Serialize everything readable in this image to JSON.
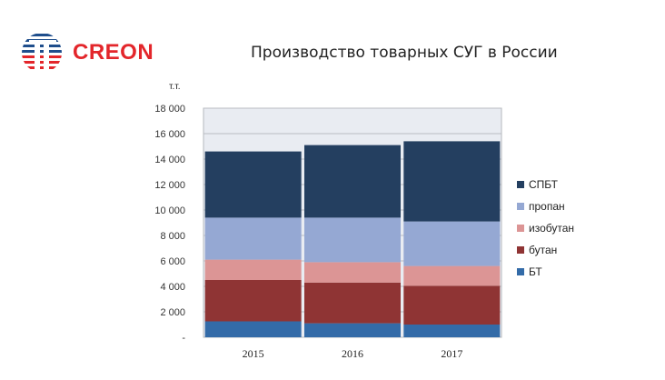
{
  "brand": {
    "name": "CREON"
  },
  "header": {
    "title": "Производство товарных СУГ в России"
  },
  "chart_data": {
    "type": "bar",
    "stacked": true,
    "title": "Производство товарных СУГ в России",
    "unit_label": "т.т.",
    "categories": [
      "2015",
      "2016",
      "2017"
    ],
    "ylim": [
      0,
      18000
    ],
    "ytick_values": [
      0,
      2000,
      4000,
      6000,
      8000,
      10000,
      12000,
      14000,
      16000,
      18000
    ],
    "ytick_labels": [
      "-",
      "2 000",
      "4 000",
      "6 000",
      "8 000",
      "10 000",
      "12 000",
      "14 000",
      "16 000",
      "18 000"
    ],
    "legend_position": "right",
    "series": [
      {
        "name": "БТ",
        "color": "#336ba8",
        "values": [
          1250,
          1100,
          1000
        ]
      },
      {
        "name": "бутан",
        "color": "#8f3434",
        "values": [
          3250,
          3200,
          3050
        ]
      },
      {
        "name": "изобутан",
        "color": "#dc9595",
        "values": [
          1600,
          1600,
          1550
        ]
      },
      {
        "name": "пропан",
        "color": "#95a8d3",
        "values": [
          3300,
          3500,
          3500
        ]
      },
      {
        "name": "СПБТ",
        "color": "#243f60",
        "values": [
          5200,
          5700,
          6300
        ]
      }
    ]
  }
}
